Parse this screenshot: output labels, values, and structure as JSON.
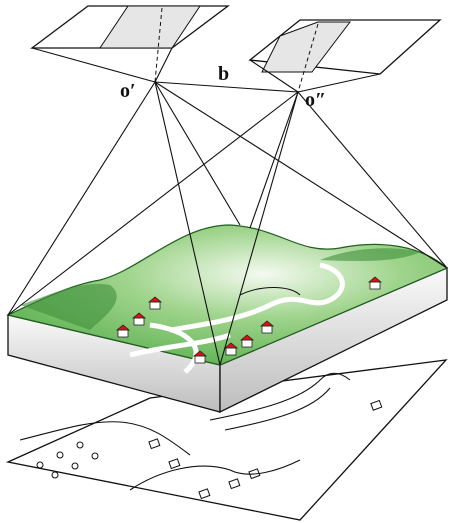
{
  "labels": {
    "left_center": "o′",
    "base": "b",
    "right_center": "o″"
  }
}
